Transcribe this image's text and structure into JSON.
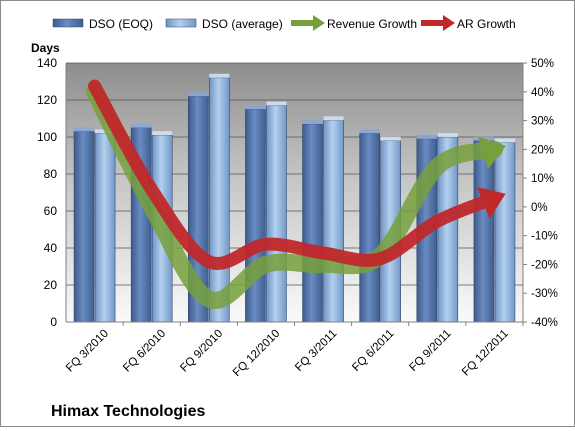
{
  "chart_data": {
    "type": "bar",
    "title": "Himax Technologies",
    "ylabel_left": "Days",
    "ylim_left": [
      0,
      140
    ],
    "yticks_left": [
      "0",
      "20",
      "40",
      "60",
      "80",
      "100",
      "120",
      "140"
    ],
    "ylim_right": [
      -40,
      50
    ],
    "yticks_right": [
      "-40%",
      "-30%",
      "-20%",
      "-10%",
      "0%",
      "10%",
      "20%",
      "30%",
      "40%",
      "50%"
    ],
    "categories": [
      "FQ 3/2010",
      "FQ 6/2010",
      "FQ 9/2010",
      "FQ 12/2010",
      "FQ 3/2011",
      "FQ 6/2011",
      "FQ 9/2011",
      "FQ 12/2011"
    ],
    "legend_position": "top",
    "grid": true,
    "series": [
      {
        "name": "DSO (EOQ)",
        "axis": "left",
        "kind": "bar",
        "color": "#4f6fa5",
        "values": [
          103,
          105,
          122,
          115,
          107,
          102,
          99,
          98
        ]
      },
      {
        "name": "DSO (average)",
        "axis": "left",
        "kind": "bar",
        "color": "#8fb3da",
        "values": [
          102,
          101,
          132,
          117,
          109,
          98,
          100,
          97
        ]
      },
      {
        "name": "Revenue Growth",
        "axis": "right",
        "kind": "arrow",
        "unit": "%",
        "color": "#77a03c",
        "values": [
          40,
          0,
          -32,
          -20,
          -20,
          -17,
          14,
          20
        ]
      },
      {
        "name": "AR Growth",
        "axis": "right",
        "kind": "arrow",
        "unit": "%",
        "color": "#c0282a",
        "values": [
          42,
          6,
          -19,
          -13,
          -16,
          -18,
          -5,
          3
        ]
      }
    ]
  }
}
